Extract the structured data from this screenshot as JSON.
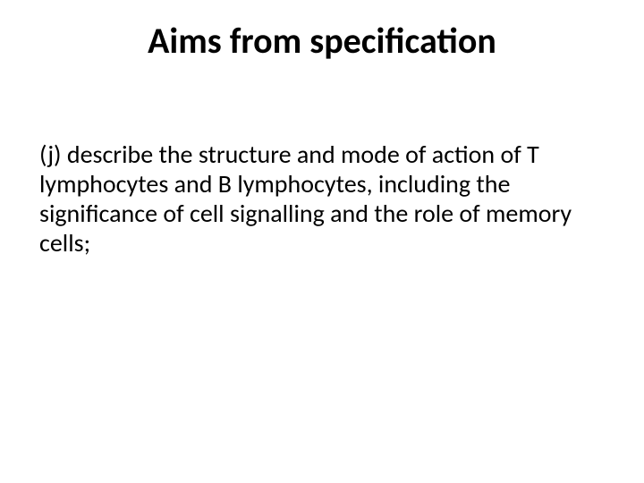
{
  "slide": {
    "title": "Aims from specification",
    "body": "(j) describe the structure and mode of action of T lymphocytes and B lymphocytes, including the significance of cell signalling and the role of memory cells;"
  },
  "style": {
    "background_color": "#ffffff",
    "text_color": "#000000",
    "title_fontsize": 40,
    "title_fontweight": 700,
    "body_fontsize": 28,
    "body_fontweight": 400,
    "font_family": "Calibri"
  }
}
